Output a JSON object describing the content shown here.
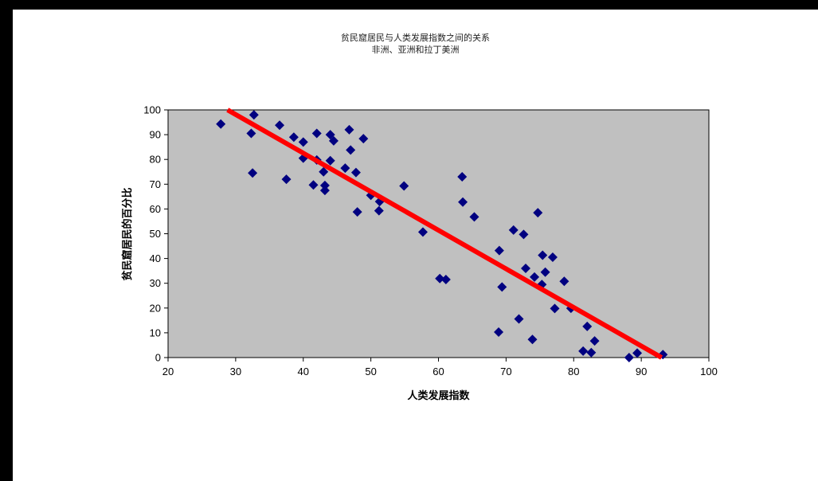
{
  "chart_data": {
    "type": "scatter",
    "title": "贫民窟居民与人类发展指数之间的关系",
    "subtitle": "非洲、亚洲和拉丁美洲",
    "xlabel": "人类发展指数",
    "ylabel": "贫民窟居民的百分比",
    "xlim": [
      20,
      100
    ],
    "ylim": [
      0,
      100
    ],
    "xticks": [
      "20",
      "30",
      "40",
      "50",
      "60",
      "70",
      "80",
      "90",
      "100"
    ],
    "yticks": [
      "0",
      "10",
      "20",
      "30",
      "40",
      "50",
      "60",
      "70",
      "80",
      "90",
      "100"
    ],
    "grid": false,
    "legend": "none",
    "colors": {
      "plot_bg": "#c0c0c0",
      "marker": "#000080",
      "trendline": "#ff0000"
    },
    "points": [
      [
        27.8,
        94.3
      ],
      [
        32.7,
        98.0
      ],
      [
        32.3,
        90.5
      ],
      [
        32.5,
        74.5
      ],
      [
        36.5,
        93.8
      ],
      [
        37.5,
        72.0
      ],
      [
        38.6,
        89.0
      ],
      [
        40.0,
        87.0
      ],
      [
        40.0,
        80.5
      ],
      [
        41.5,
        69.7
      ],
      [
        42.0,
        90.5
      ],
      [
        42.0,
        79.8
      ],
      [
        43.0,
        75.0
      ],
      [
        43.2,
        69.5
      ],
      [
        43.2,
        67.5
      ],
      [
        44.0,
        90.0
      ],
      [
        44.0,
        79.5
      ],
      [
        44.5,
        87.5
      ],
      [
        46.2,
        76.5
      ],
      [
        46.8,
        92.0
      ],
      [
        47.0,
        83.8
      ],
      [
        47.8,
        74.7
      ],
      [
        48.0,
        58.8
      ],
      [
        48.9,
        88.4
      ],
      [
        50.0,
        65.5
      ],
      [
        51.3,
        63.0
      ],
      [
        51.2,
        59.3
      ],
      [
        54.9,
        69.3
      ],
      [
        57.7,
        50.7
      ],
      [
        60.2,
        31.9
      ],
      [
        61.1,
        31.5
      ],
      [
        63.5,
        73.0
      ],
      [
        63.6,
        62.8
      ],
      [
        65.3,
        56.8
      ],
      [
        69.0,
        43.2
      ],
      [
        68.9,
        10.3
      ],
      [
        69.4,
        28.5
      ],
      [
        71.1,
        51.5
      ],
      [
        71.9,
        15.6
      ],
      [
        72.6,
        49.7
      ],
      [
        72.9,
        36.0
      ],
      [
        73.9,
        7.3
      ],
      [
        74.2,
        32.5
      ],
      [
        74.7,
        58.5
      ],
      [
        75.3,
        29.5
      ],
      [
        75.4,
        41.3
      ],
      [
        75.8,
        34.5
      ],
      [
        76.9,
        40.5
      ],
      [
        77.2,
        19.8
      ],
      [
        78.6,
        30.8
      ],
      [
        79.6,
        19.9
      ],
      [
        81.4,
        2.6
      ],
      [
        82.0,
        12.6
      ],
      [
        82.6,
        2.0
      ],
      [
        83.1,
        6.7
      ],
      [
        88.2,
        0.0
      ],
      [
        89.4,
        1.8
      ],
      [
        93.2,
        1.2
      ]
    ],
    "trendline": {
      "x": [
        28.8,
        93.0
      ],
      "y": [
        100,
        0
      ]
    }
  }
}
